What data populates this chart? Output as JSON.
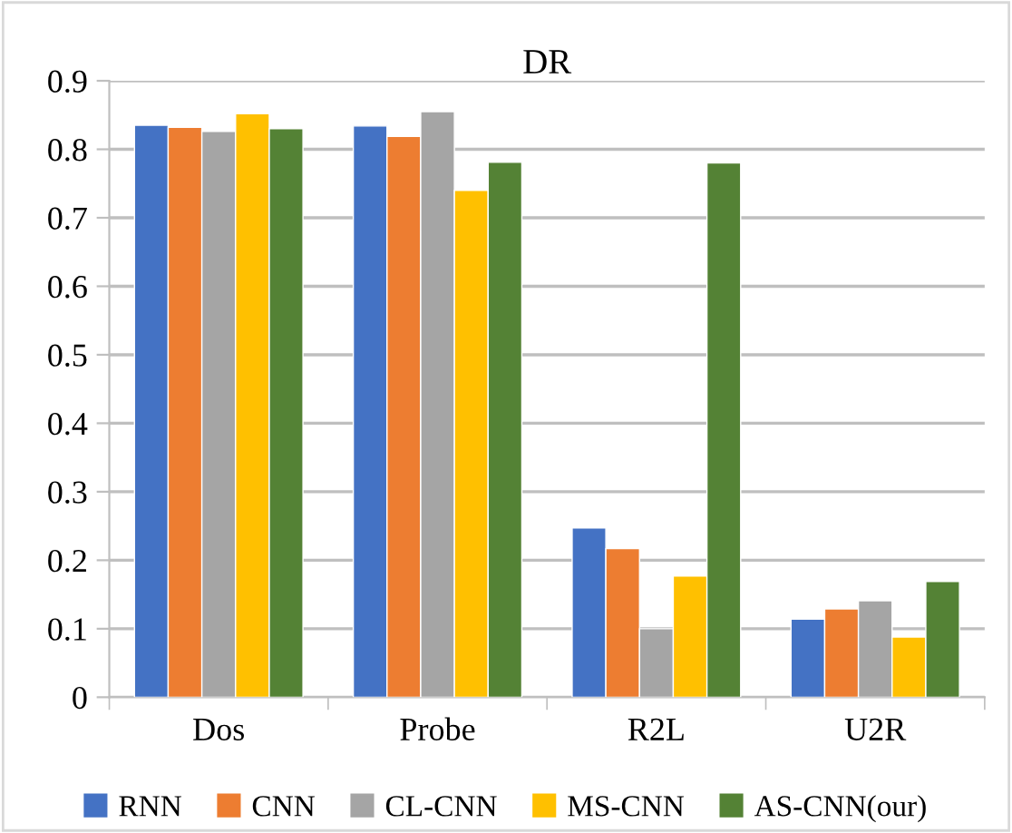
{
  "chart_data": {
    "type": "bar",
    "title": "DR",
    "categories": [
      "Dos",
      "Probe",
      "R2L",
      "U2R"
    ],
    "series": [
      {
        "name": "RNN",
        "color": "#4472c4",
        "values": [
          0.835,
          0.834,
          0.247,
          0.114
        ]
      },
      {
        "name": "CNN",
        "color": "#ed7d31",
        "values": [
          0.832,
          0.819,
          0.217,
          0.129
        ]
      },
      {
        "name": "CL-CNN",
        "color": "#a5a5a5",
        "values": [
          0.826,
          0.855,
          0.1,
          0.141
        ]
      },
      {
        "name": "MS-CNN",
        "color": "#ffc000",
        "values": [
          0.852,
          0.74,
          0.177,
          0.088
        ]
      },
      {
        "name": "AS-CNN(our)",
        "color": "#548235",
        "values": [
          0.83,
          0.781,
          0.78,
          0.169
        ]
      }
    ],
    "ylim": [
      0,
      0.9
    ],
    "yticks": [
      0,
      {
        "value": 0.1,
        "label": "0.1"
      },
      {
        "value": 0.2,
        "label": "0.2"
      },
      {
        "value": 0.3,
        "label": "0.3"
      },
      {
        "value": 0.4,
        "label": "0.4"
      },
      {
        "value": 0.5,
        "label": "0.5"
      },
      {
        "value": 0.6,
        "label": "0.6"
      },
      {
        "value": 0.7,
        "label": "0.7"
      },
      {
        "value": 0.8,
        "label": "0.8"
      },
      {
        "value": 0.9,
        "label": "0.9"
      }
    ],
    "grid": "y",
    "legend": "bottom"
  }
}
